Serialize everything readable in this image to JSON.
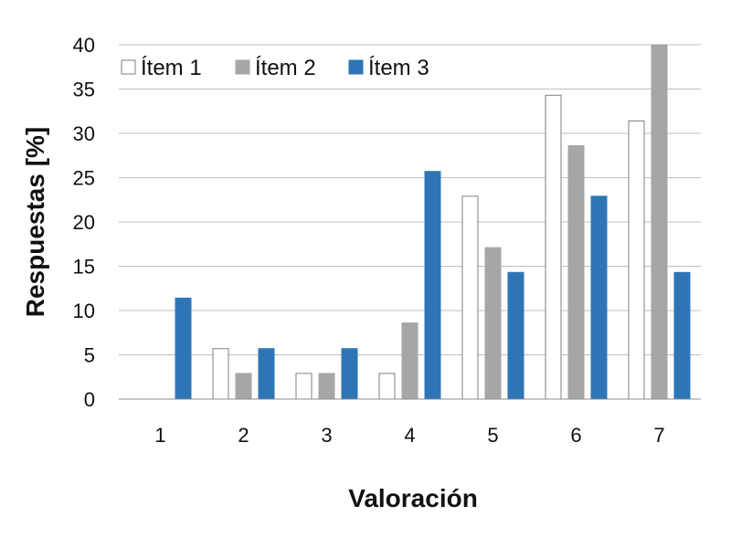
{
  "chart_data": {
    "type": "bar",
    "xlabel": "Valoración",
    "ylabel": "Respuestas [%]",
    "categories": [
      "1",
      "2",
      "3",
      "4",
      "5",
      "6",
      "7"
    ],
    "ylim": [
      0,
      40
    ],
    "yticks": [
      0,
      5,
      10,
      15,
      20,
      25,
      30,
      35,
      40
    ],
    "grid": true,
    "legend_position": "top-left",
    "series": [
      {
        "name": "Ítem 1",
        "color": "#ffffff",
        "stroke": "#7f7f7f",
        "values": [
          0,
          5.7,
          2.9,
          2.9,
          22.9,
          34.3,
          31.4
        ]
      },
      {
        "name": "Ítem 2",
        "color": "#a6a6a6",
        "stroke": "#a6a6a6",
        "values": [
          0,
          2.9,
          2.9,
          8.6,
          17.1,
          28.6,
          40.0
        ]
      },
      {
        "name": "Ítem 3",
        "color": "#2e75b6",
        "stroke": "#2e75b6",
        "values": [
          11.4,
          5.7,
          5.7,
          25.7,
          14.3,
          22.9,
          14.3
        ]
      }
    ]
  }
}
